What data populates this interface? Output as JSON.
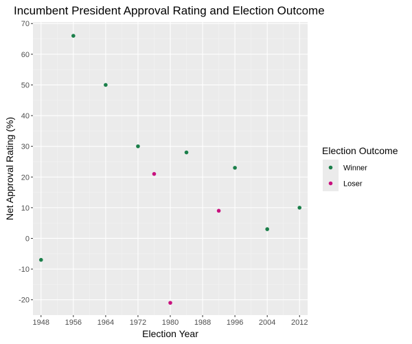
{
  "chart_data": {
    "type": "scatter",
    "title": "Incumbent President Approval Rating and Election Outcome",
    "xlabel": "Election Year",
    "ylabel": "Net Approval Rating (%)",
    "xlim": [
      1946.0,
      2014.0
    ],
    "ylim": [
      -25.0,
      70.5
    ],
    "x_ticks": [
      1948,
      1956,
      1964,
      1972,
      1980,
      1988,
      1996,
      2004,
      2012
    ],
    "y_ticks": [
      -20,
      -10,
      0,
      10,
      20,
      30,
      40,
      50,
      60,
      70
    ],
    "grid": true,
    "legend_position": "right",
    "legend_title": "Election Outcome",
    "series": [
      {
        "name": "Winner",
        "color": "#1b7f4a",
        "points": [
          {
            "x": 1948,
            "y": -7
          },
          {
            "x": 1956,
            "y": 66
          },
          {
            "x": 1964,
            "y": 50
          },
          {
            "x": 1972,
            "y": 30
          },
          {
            "x": 1984,
            "y": 28
          },
          {
            "x": 1996,
            "y": 23
          },
          {
            "x": 2004,
            "y": 3
          },
          {
            "x": 2012,
            "y": 10
          }
        ]
      },
      {
        "name": "Loser",
        "color": "#c8117e",
        "points": [
          {
            "x": 1976,
            "y": 21
          },
          {
            "x": 1980,
            "y": -21
          },
          {
            "x": 1992,
            "y": 9
          }
        ]
      }
    ],
    "colors": {
      "panel_background": "#ebebeb",
      "grid_major": "#ffffff",
      "grid_minor": "#f3f3f3",
      "tick_label": "#4d4d4d",
      "tick_mark": "#333333"
    }
  }
}
